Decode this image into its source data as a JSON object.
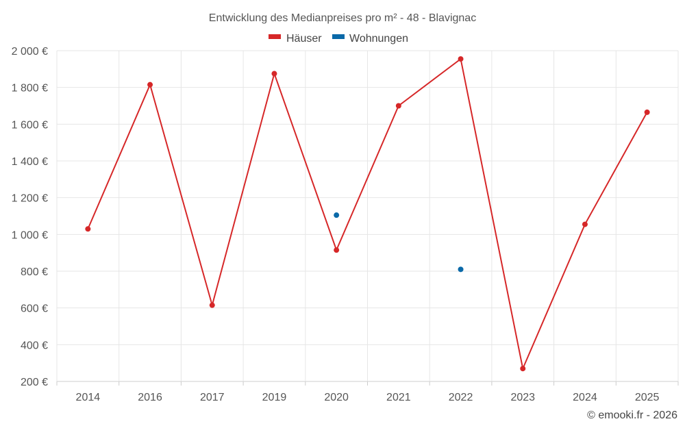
{
  "chart_data": {
    "type": "line",
    "title": "Entwicklung des Medianpreises pro m² - 48 - Blavignac",
    "categories": [
      "2014",
      "2016",
      "2017",
      "2019",
      "2020",
      "2021",
      "2022",
      "2023",
      "2024",
      "2025"
    ],
    "ylim": [
      200,
      2000
    ],
    "yticks": [
      200,
      400,
      600,
      800,
      1000,
      1200,
      1400,
      1600,
      1800,
      2000
    ],
    "ytick_labels": [
      "200 €",
      "400 €",
      "600 €",
      "800 €",
      "1 000 €",
      "1 200 €",
      "1 400 €",
      "1 600 €",
      "1 800 €",
      "2 000 €"
    ],
    "legend_position": "top-center",
    "grid": true,
    "series": [
      {
        "name": "Häuser",
        "color": "#d62728",
        "values": [
          1030,
          1815,
          615,
          1875,
          915,
          1700,
          1955,
          270,
          1055,
          1665
        ]
      },
      {
        "name": "Wohnungen",
        "color": "#0a69a8",
        "values": [
          null,
          null,
          null,
          null,
          1105,
          null,
          810,
          null,
          null,
          null
        ]
      }
    ],
    "credit": "© emooki.fr - 2026"
  }
}
